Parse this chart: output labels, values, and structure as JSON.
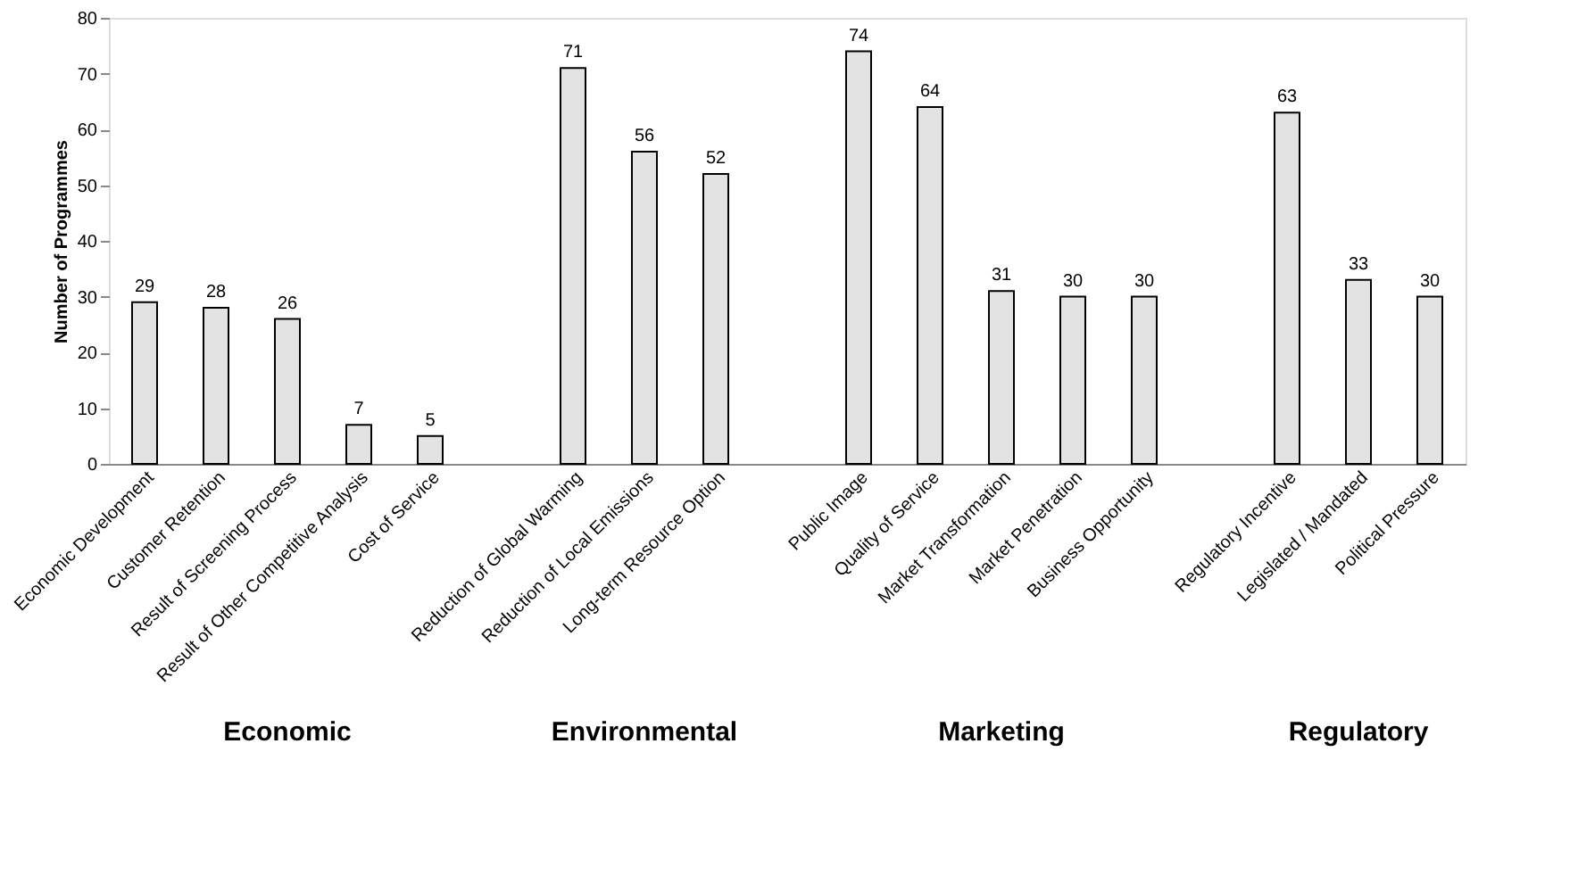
{
  "chart_data": {
    "type": "bar",
    "ylabel": "Number of Programmes",
    "categories": [
      "Economic Development",
      "Customer Retention",
      "Result of Screening Process",
      "Result of Other Competitive Analysis",
      "Cost of Service",
      null,
      "Reduction of Global Warming",
      "Reduction of Local Emissions",
      "Long-term Resource Option",
      null,
      "Public Image",
      "Quality of Service",
      "Market Transformation",
      "Market Penetration",
      "Business Opportunity",
      null,
      "Regulatory Incentive",
      "Legislated / Mandated",
      "Political Pressure"
    ],
    "values": [
      29,
      28,
      26,
      7,
      5,
      null,
      71,
      56,
      52,
      null,
      74,
      64,
      31,
      30,
      30,
      null,
      63,
      33,
      30
    ],
    "color": "#e3e3e3",
    "ylim": [
      0,
      80
    ],
    "yticks": [
      0,
      10,
      20,
      30,
      40,
      50,
      60,
      70,
      80
    ],
    "grid": false,
    "data_labels": true,
    "annotations": [
      "Economic",
      "Environmental",
      "Marketing",
      "Regulatory"
    ]
  }
}
